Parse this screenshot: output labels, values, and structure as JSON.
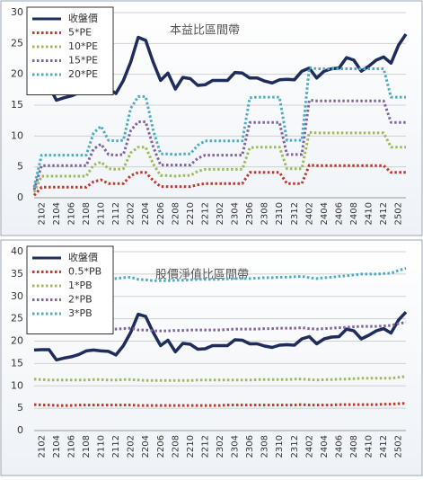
{
  "chart_data": [
    {
      "type": "line",
      "title": "本益比區間帶",
      "legend": "upper left",
      "grid": true,
      "categories": [
        null,
        "2102",
        null,
        "2104",
        null,
        "2106",
        null,
        "2108",
        null,
        "2110",
        null,
        "2112",
        null,
        "2202",
        null,
        "2204",
        null,
        "2206",
        null,
        "2208",
        null,
        "2210",
        null,
        "2212",
        null,
        "2302",
        null,
        "2304",
        null,
        "2306",
        null,
        "2308",
        null,
        "2310",
        null,
        "2312",
        null,
        "2402",
        null,
        "2404",
        null,
        "2406",
        null,
        "2408",
        null,
        "2410",
        null,
        "2412",
        null,
        "2502",
        null
      ],
      "ylim": [
        0,
        30
      ],
      "yticks": [
        0,
        5,
        10,
        15,
        20,
        25,
        30
      ],
      "series": [
        {
          "name": "收盤價",
          "color": "#1f2d5c",
          "line_style": "solid",
          "values": [
            18,
            18.1,
            18.1,
            15.8,
            16.2,
            16.5,
            17,
            17.8,
            18,
            17.8,
            17.7,
            16.9,
            19,
            22,
            26,
            25.5,
            22,
            19,
            20.2,
            17.6,
            19.5,
            19.3,
            18.2,
            18.3,
            19,
            19,
            19,
            20.3,
            20.2,
            19.4,
            19.4,
            18.9,
            18.6,
            19.1,
            19.2,
            19.1,
            20.5,
            21,
            19.4,
            20.5,
            20.9,
            21,
            22.7,
            22.3,
            20.5,
            21.3,
            22.3,
            22.8,
            21.8,
            24.7,
            26.5
          ]
        },
        {
          "name": "5*PE",
          "color": "#c0392b",
          "line_style": "dotted",
          "values": [
            0.4,
            1.7,
            1.7,
            1.7,
            1.7,
            1.7,
            1.7,
            1.7,
            2.6,
            2.9,
            2.3,
            2.3,
            2.3,
            3.6,
            4.1,
            4.1,
            2.8,
            1.8,
            1.8,
            1.8,
            1.8,
            1.8,
            2.1,
            2.3,
            2.3,
            2.3,
            2.3,
            2.3,
            2.3,
            4.1,
            4.1,
            4.1,
            4.1,
            4.1,
            2.3,
            2.3,
            2.3,
            5.3,
            5.2,
            5.2,
            5.2,
            5.2,
            5.2,
            5.2,
            5.2,
            5.2,
            5.2,
            5.2,
            4.1,
            4.1,
            4.1
          ]
        },
        {
          "name": "10*PE",
          "color": "#9bbb59",
          "line_style": "dotted",
          "values": [
            0.9,
            3.5,
            3.5,
            3.5,
            3.5,
            3.5,
            3.5,
            3.5,
            5.3,
            5.8,
            4.7,
            4.6,
            4.7,
            7.3,
            8.2,
            8.2,
            5.5,
            3.6,
            3.6,
            3.5,
            3.6,
            3.6,
            4.3,
            4.6,
            4.6,
            4.6,
            4.6,
            4.6,
            4.6,
            8.1,
            8.2,
            8.2,
            8.2,
            8.2,
            4.7,
            4.7,
            4.7,
            10.6,
            10.5,
            10.5,
            10.5,
            10.5,
            10.5,
            10.5,
            10.5,
            10.5,
            10.5,
            10.5,
            8.2,
            8.2,
            8.2
          ]
        },
        {
          "name": "15*PE",
          "color": "#8064a2",
          "line_style": "dotted",
          "values": [
            1.3,
            5.2,
            5.2,
            5.2,
            5.2,
            5.2,
            5.2,
            5.2,
            7.9,
            8.7,
            7.0,
            6.9,
            7.0,
            10.9,
            12.3,
            12.3,
            8.3,
            5.3,
            5.3,
            5.3,
            5.3,
            5.3,
            6.4,
            6.9,
            6.9,
            6.9,
            6.9,
            6.9,
            6.9,
            12.2,
            12.2,
            12.2,
            12.2,
            12.2,
            7.0,
            7.0,
            7.0,
            15.8,
            15.7,
            15.7,
            15.7,
            15.7,
            15.7,
            15.7,
            15.7,
            15.7,
            15.7,
            15.7,
            12.2,
            12.2,
            12.2
          ]
        },
        {
          "name": "20*PE",
          "color": "#4bacc6",
          "line_style": "dotted",
          "values": [
            1.7,
            6.9,
            6.9,
            6.9,
            6.9,
            6.9,
            6.9,
            6.9,
            10.5,
            11.6,
            9.3,
            9.2,
            9.3,
            14.5,
            16.4,
            16.4,
            11,
            7.1,
            7.1,
            7,
            7.1,
            7.1,
            8.5,
            9.2,
            9.2,
            9.2,
            9.2,
            9.2,
            9.2,
            16.2,
            16.3,
            16.3,
            16.3,
            16.3,
            9.3,
            9.3,
            9.3,
            21.1,
            20.9,
            20.9,
            20.9,
            20.9,
            20.9,
            20.9,
            20.9,
            20.9,
            20.9,
            20.9,
            16.3,
            16.3,
            16.3
          ]
        }
      ]
    },
    {
      "type": "line",
      "title": "股價淨值比區間帶",
      "legend": "upper left",
      "grid": true,
      "categories": [
        null,
        "2102",
        null,
        "2104",
        null,
        "2106",
        null,
        "2108",
        null,
        "2110",
        null,
        "2112",
        null,
        "2202",
        null,
        "2204",
        null,
        "2206",
        null,
        "2208",
        null,
        "2210",
        null,
        "2212",
        null,
        "2302",
        null,
        "2304",
        null,
        "2306",
        null,
        "2308",
        null,
        "2310",
        null,
        "2312",
        null,
        "2402",
        null,
        "2404",
        null,
        "2406",
        null,
        "2408",
        null,
        "2410",
        null,
        "2412",
        null,
        "2502",
        null
      ],
      "ylim": [
        0,
        40
      ],
      "yticks": [
        0,
        5,
        10,
        15,
        20,
        25,
        30,
        35,
        40
      ],
      "series": [
        {
          "name": "收盤價",
          "color": "#1f2d5c",
          "line_style": "solid",
          "values": [
            18,
            18.1,
            18.1,
            15.8,
            16.2,
            16.5,
            17,
            17.8,
            18,
            17.8,
            17.7,
            16.9,
            19,
            22,
            26,
            25.5,
            22,
            19,
            20.2,
            17.6,
            19.5,
            19.3,
            18.2,
            18.3,
            19,
            19,
            19,
            20.3,
            20.2,
            19.4,
            19.4,
            18.9,
            18.6,
            19.1,
            19.2,
            19.1,
            20.5,
            21,
            19.4,
            20.5,
            20.9,
            21,
            22.7,
            22.3,
            20.5,
            21.3,
            22.3,
            22.8,
            21.8,
            24.7,
            26.5
          ]
        },
        {
          "name": "0.5*PB",
          "color": "#c0392b",
          "line_style": "dotted",
          "values": [
            5.8,
            5.7,
            5.7,
            5.6,
            5.6,
            5.6,
            5.7,
            5.7,
            5.7,
            5.7,
            5.7,
            5.7,
            5.7,
            5.7,
            5.6,
            5.6,
            5.6,
            5.6,
            5.6,
            5.6,
            5.6,
            5.6,
            5.6,
            5.6,
            5.6,
            5.6,
            5.7,
            5.7,
            5.7,
            5.7,
            5.7,
            5.7,
            5.7,
            5.7,
            5.7,
            5.7,
            5.8,
            5.7,
            5.7,
            5.7,
            5.7,
            5.8,
            5.8,
            5.8,
            5.8,
            5.8,
            5.8,
            5.9,
            5.9,
            6.0,
            6.1
          ]
        },
        {
          "name": "1*PB",
          "color": "#9bbb59",
          "line_style": "dotted",
          "values": [
            11.5,
            11.4,
            11.3,
            11.3,
            11.3,
            11.3,
            11.3,
            11.3,
            11.4,
            11.4,
            11.3,
            11.3,
            11.4,
            11.4,
            11.3,
            11.2,
            11.2,
            11.2,
            11.2,
            11.2,
            11.2,
            11.2,
            11.3,
            11.3,
            11.3,
            11.3,
            11.3,
            11.3,
            11.3,
            11.3,
            11.4,
            11.4,
            11.4,
            11.4,
            11.4,
            11.5,
            11.5,
            11.4,
            11.3,
            11.4,
            11.4,
            11.5,
            11.5,
            11.6,
            11.7,
            11.7,
            11.7,
            11.7,
            11.7,
            11.9,
            12.1
          ]
        },
        {
          "name": "2*PB",
          "color": "#8064a2",
          "line_style": "dotted",
          "values": [
            23.0,
            22.8,
            22.7,
            22.5,
            22.5,
            22.5,
            22.7,
            22.7,
            22.8,
            22.8,
            22.7,
            22.7,
            22.8,
            22.9,
            22.5,
            22.5,
            22.3,
            22.3,
            22.3,
            22.4,
            22.4,
            22.5,
            22.5,
            22.5,
            22.5,
            22.5,
            22.6,
            22.7,
            22.7,
            22.7,
            22.7,
            22.8,
            22.8,
            22.9,
            22.9,
            22.9,
            23.0,
            22.8,
            22.7,
            22.8,
            22.9,
            23.0,
            23.1,
            23.2,
            23.3,
            23.3,
            23.3,
            23.4,
            23.5,
            23.9,
            24.2
          ]
        },
        {
          "name": "3*PB",
          "color": "#4bacc6",
          "line_style": "dotted",
          "values": [
            34.5,
            34.2,
            34.0,
            33.8,
            33.8,
            33.8,
            34.0,
            34.0,
            34.2,
            34.2,
            34.0,
            34.0,
            34.2,
            34.3,
            33.8,
            33.7,
            33.5,
            33.5,
            33.5,
            33.6,
            33.6,
            33.7,
            33.8,
            33.8,
            33.8,
            33.8,
            33.9,
            34.0,
            34.0,
            34.0,
            34.1,
            34.2,
            34.2,
            34.3,
            34.3,
            34.4,
            34.5,
            34.2,
            34.0,
            34.2,
            34.3,
            34.5,
            34.6,
            34.8,
            35.0,
            35.0,
            35.0,
            35.1,
            35.2,
            35.8,
            36.3
          ]
        }
      ]
    }
  ]
}
